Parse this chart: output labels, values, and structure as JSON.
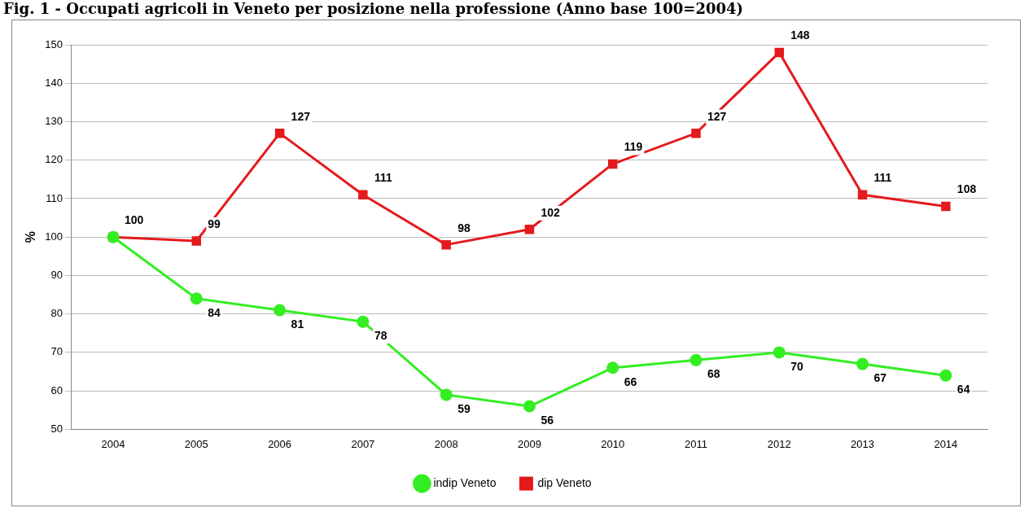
{
  "chart_data": {
    "type": "line",
    "title": "Fig. 1 - Occupati agricoli in Veneto per posizione nella professione (Anno base 100=2004)",
    "ylabel": "%",
    "categories": [
      "2004",
      "2005",
      "2006",
      "2007",
      "2008",
      "2009",
      "2010",
      "2011",
      "2012",
      "2013",
      "2014"
    ],
    "series": [
      {
        "name": "dip Veneto",
        "color": "#e41a1c",
        "marker": "square",
        "values": [
          100,
          99,
          127,
          111,
          98,
          102,
          119,
          127,
          148,
          111,
          108
        ],
        "value_labels": [
          "100",
          "99",
          "127",
          "111",
          "98",
          "102",
          "119",
          "127",
          "148",
          "111",
          "108"
        ]
      },
      {
        "name": "indip Veneto",
        "color": "#33ee22",
        "marker": "circle",
        "values": [
          100,
          84,
          81,
          78,
          59,
          56,
          66,
          68,
          70,
          67,
          64
        ],
        "value_labels": [
          null,
          "84",
          "81",
          "78",
          "59",
          "56",
          "66",
          "68",
          "70",
          "67",
          "64"
        ]
      }
    ],
    "ylim": [
      50,
      150
    ],
    "yticks": [
      50,
      60,
      70,
      80,
      90,
      100,
      110,
      120,
      130,
      140,
      150
    ],
    "grid": "y",
    "legend": "bottom"
  }
}
